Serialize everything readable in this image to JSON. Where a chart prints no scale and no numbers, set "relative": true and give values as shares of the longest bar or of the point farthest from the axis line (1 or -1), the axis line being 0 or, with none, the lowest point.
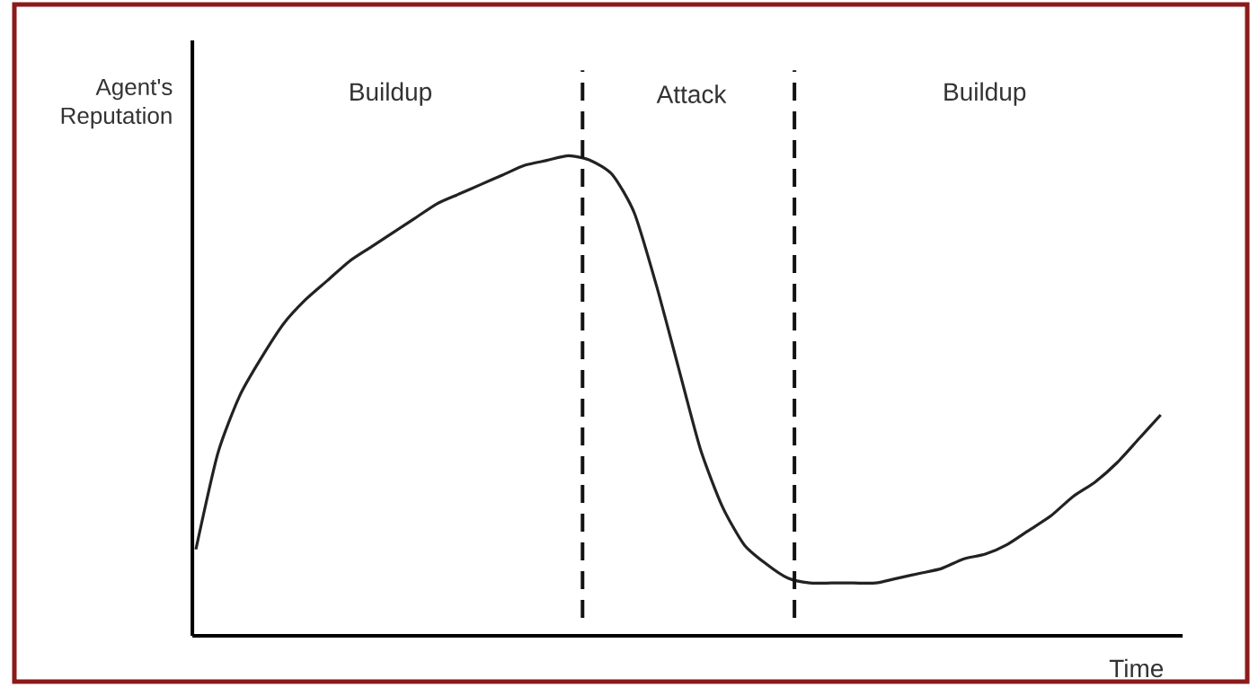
{
  "chart_data": {
    "type": "line",
    "relative": true,
    "xlabel": "Time",
    "ylabel": "Agent's Reputation",
    "categories": [
      null,
      null,
      null,
      null,
      null,
      null,
      null,
      null,
      null,
      null,
      null,
      null,
      null,
      null,
      null,
      null,
      null,
      null,
      null,
      null,
      null,
      null,
      null,
      null,
      null,
      null,
      null,
      null,
      null,
      null,
      null,
      null,
      null,
      null,
      null,
      null,
      null,
      null,
      null,
      null,
      null,
      null,
      null,
      null,
      null
    ],
    "series": [
      {
        "color": "#222222",
        "values": [
          0.18,
          0.38,
          0.5,
          0.58,
          0.65,
          0.7,
          0.74,
          0.78,
          0.81,
          0.84,
          0.87,
          0.9,
          0.92,
          0.94,
          0.96,
          0.98,
          0.99,
          1,
          0.99,
          0.96,
          0.88,
          0.73,
          0.56,
          0.39,
          0.27,
          0.19,
          0.15,
          0.12,
          0.11,
          0.11,
          0.11,
          0.11,
          0.12,
          0.13,
          0.14,
          0.16,
          0.17,
          0.19,
          0.22,
          0.25,
          0.29,
          0.32,
          0.36,
          0.41,
          0.46
        ]
      }
    ],
    "annotations": [
      "Buildup",
      "Attack",
      "Buildup"
    ],
    "marker": "none",
    "line_style": "solid"
  }
}
